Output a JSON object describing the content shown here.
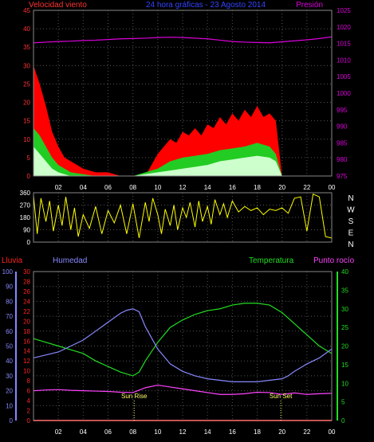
{
  "chart_data": [
    {
      "type": "line",
      "title": "24 hora gráficas - 23 Agosto 2014",
      "legend_left": "Velocidad viento",
      "legend_right": "Presión",
      "x_ticks": [
        "02",
        "04",
        "06",
        "08",
        "10",
        "12",
        "14",
        "16",
        "18",
        "20",
        "22",
        "00"
      ],
      "y_left_ticks": [
        "0",
        "5",
        "10",
        "15",
        "20",
        "25",
        "30",
        "35",
        "40",
        "45"
      ],
      "y_right_ticks": [
        "975",
        "980",
        "985",
        "990",
        "995",
        "1000",
        "1005",
        "1010",
        "1015",
        "1020",
        "1025"
      ],
      "ylim_left": [
        0,
        45
      ],
      "ylim_right": [
        975,
        1025
      ],
      "colors": {
        "gust": "#ff0000",
        "avg_wind": "#22cc22",
        "wind_spread": "#ccffcc",
        "pressure": "#dd00dd",
        "axis_left": "#ff3333",
        "axis_right": "#dd00dd",
        "grid": "#555555"
      },
      "series": [
        {
          "key": "gust",
          "x": [
            0,
            0.5,
            1,
            1.5,
            2,
            2.5,
            3,
            3.5,
            4,
            5,
            6,
            7,
            8,
            9,
            10,
            10.5,
            11,
            11.5,
            12,
            12.5,
            13,
            13.5,
            14,
            14.5,
            15,
            15.5,
            16,
            16.5,
            17,
            17.5,
            18,
            18.5,
            19,
            19.5,
            20,
            21,
            22,
            23,
            24
          ],
          "y": [
            30,
            25,
            19,
            12,
            8,
            5,
            4,
            3,
            2,
            1,
            1,
            0,
            0,
            0,
            6,
            8,
            10,
            9,
            12,
            11,
            13,
            11,
            14,
            13,
            16,
            14,
            17,
            15,
            18,
            16,
            19,
            16,
            17,
            15,
            0,
            0,
            0,
            0,
            0
          ]
        },
        {
          "key": "avg_wind",
          "x": [
            0,
            0.5,
            1,
            1.5,
            2,
            2.5,
            3,
            4,
            5,
            6,
            8,
            10,
            10.5,
            11,
            12,
            13,
            14,
            15,
            16,
            17,
            18,
            19,
            19.5,
            20,
            22,
            24
          ],
          "y": [
            13,
            11,
            8,
            5,
            3,
            2,
            1,
            0.5,
            0,
            0,
            0,
            2,
            3,
            4,
            5,
            5.5,
            6,
            7,
            7.5,
            8,
            9,
            8,
            6,
            0,
            0,
            0
          ]
        },
        {
          "key": "wind_spread",
          "x": [
            0,
            0.5,
            1,
            1.5,
            2,
            2.5,
            3,
            4,
            5,
            6,
            8,
            10,
            11,
            12,
            13,
            14,
            15,
            16,
            17,
            18,
            19,
            19.5,
            20,
            22,
            24
          ],
          "y": [
            8,
            6,
            4,
            2,
            1,
            0.5,
            0,
            0,
            0,
            0,
            0,
            1,
            1.5,
            2,
            2.5,
            3,
            4,
            4.5,
            5,
            5.5,
            5,
            4,
            0,
            0,
            0
          ]
        },
        {
          "key": "pressure",
          "x": [
            0,
            1,
            2,
            3,
            4,
            5,
            6,
            7,
            8,
            9,
            10,
            11,
            12,
            13,
            14,
            15,
            16,
            17,
            18,
            19,
            20,
            21,
            22,
            23,
            24
          ],
          "y": [
            1015.2,
            1015.4,
            1015.6,
            1015.7,
            1015.9,
            1016.0,
            1016.2,
            1016.4,
            1016.5,
            1016.6,
            1016.8,
            1016.9,
            1016.8,
            1016.6,
            1016.4,
            1016.0,
            1015.6,
            1015.4,
            1015.3,
            1015.2,
            1015.5,
            1015.8,
            1016.1,
            1016.5,
            1017.0
          ]
        }
      ]
    },
    {
      "type": "line",
      "title": "",
      "x_ticks": [
        "02",
        "04",
        "06",
        "08",
        "10",
        "12",
        "14",
        "16",
        "18",
        "20",
        "22",
        "00"
      ],
      "y_left_ticks": [
        "0",
        "90",
        "180",
        "270",
        "360"
      ],
      "right_labels": [
        "N",
        "W",
        "S",
        "E",
        "N"
      ],
      "ylim": [
        0,
        360
      ],
      "colors": {
        "direction": "#ffff00",
        "axis": "#ffffff"
      },
      "series": [
        {
          "key": "direction",
          "x": [
            0,
            0.3,
            0.6,
            1,
            1.3,
            1.6,
            2,
            2.3,
            2.6,
            3,
            3.3,
            3.6,
            4,
            4.5,
            5,
            5.5,
            6,
            6.5,
            7,
            7.5,
            8,
            8.5,
            9,
            9.3,
            9.6,
            10,
            10.3,
            10.6,
            11,
            11.3,
            11.6,
            12,
            12.3,
            12.6,
            13,
            13.3,
            13.6,
            14,
            14.3,
            14.6,
            15,
            15.3,
            15.6,
            16,
            16.5,
            17,
            17.5,
            18,
            18.5,
            19,
            19.5,
            20,
            20.5,
            21,
            21.5,
            22,
            22.5,
            23,
            23.5,
            24
          ],
          "y": [
            340,
            60,
            320,
            150,
            300,
            80,
            270,
            120,
            330,
            90,
            250,
            40,
            200,
            100,
            260,
            60,
            230,
            140,
            270,
            60,
            280,
            30,
            290,
            150,
            320,
            200,
            60,
            240,
            120,
            270,
            90,
            250,
            180,
            290,
            110,
            300,
            150,
            260,
            130,
            310,
            200,
            280,
            180,
            300,
            220,
            260,
            230,
            250,
            200,
            240,
            230,
            250,
            210,
            320,
            330,
            80,
            350,
            330,
            40,
            30
          ]
        }
      ]
    },
    {
      "type": "line",
      "title": "",
      "legends": [
        "Lluvia",
        "Humedad",
        "Temperatura",
        "Punto rocío"
      ],
      "annotations": [
        "Sun Rise",
        "Sun Set"
      ],
      "annotation_x": [
        8.1,
        19.9
      ],
      "x_ticks": [
        "02",
        "04",
        "06",
        "08",
        "10",
        "12",
        "14",
        "16",
        "18",
        "20",
        "22",
        "00"
      ],
      "rain_ticks": [
        "0",
        "2",
        "4",
        "6",
        "8",
        "10",
        "12",
        "14",
        "16",
        "18",
        "20",
        "22",
        "24",
        "26",
        "28",
        "30"
      ],
      "humidity_ticks": [
        "0",
        "10",
        "20",
        "30",
        "40",
        "50",
        "60",
        "70",
        "80",
        "90",
        "100"
      ],
      "temp_ticks": [
        "0",
        "5",
        "10",
        "15",
        "20",
        "25",
        "30",
        "35",
        "40"
      ],
      "ylim_humidity": [
        0,
        100
      ],
      "ylim_temp": [
        0,
        40
      ],
      "ylim_rain": [
        0,
        30
      ],
      "colors": {
        "rain": "#ff2222",
        "humidity": "#8888ff",
        "temperature": "#22dd22",
        "dew_point": "#ff44ff",
        "axis_temp": "#22dd22",
        "axis_dew": "#ff44ff",
        "sun": "#ffff66",
        "grid": "#555555"
      },
      "series": [
        {
          "key": "humidity",
          "x": [
            0,
            1,
            2,
            3,
            4,
            5,
            6,
            7,
            7.5,
            8,
            8.5,
            9,
            10,
            11,
            12,
            13,
            14,
            15,
            16,
            17,
            18,
            19,
            20,
            20.5,
            21,
            22,
            23,
            24
          ],
          "y": [
            42,
            44,
            46,
            50,
            54,
            60,
            66,
            72,
            74,
            75,
            73,
            63,
            48,
            38,
            33,
            30,
            28,
            27,
            26,
            26,
            26,
            27,
            28,
            30,
            33,
            38,
            42,
            48
          ]
        },
        {
          "key": "temperature",
          "x": [
            0,
            1,
            2,
            3,
            4,
            5,
            6,
            7,
            7.5,
            8,
            8.5,
            9,
            10,
            11,
            12,
            13,
            14,
            15,
            16,
            17,
            18,
            19,
            20,
            21,
            22,
            23,
            24
          ],
          "y": [
            22,
            21,
            20,
            19,
            18,
            16,
            14.5,
            13,
            12.5,
            12,
            13,
            16,
            21,
            25,
            27,
            28.5,
            29.5,
            30,
            31,
            31.5,
            31.5,
            31,
            29,
            26,
            23,
            20,
            18
          ]
        },
        {
          "key": "dew_point",
          "x": [
            0,
            1,
            2,
            3,
            4,
            5,
            6,
            7,
            8,
            9,
            10,
            11,
            12,
            13,
            14,
            15,
            16,
            17,
            18,
            19,
            20,
            21,
            22,
            23,
            24
          ],
          "y": [
            8,
            8.2,
            8.3,
            8.1,
            8,
            7.9,
            7.8,
            7.6,
            7.5,
            8.8,
            9.5,
            9,
            8.5,
            8,
            7.5,
            7,
            7,
            7.2,
            7.6,
            7.5,
            7,
            7.4,
            7,
            7.2,
            7.3
          ]
        },
        {
          "key": "rain",
          "x": [
            0,
            24
          ],
          "y": [
            0,
            0
          ]
        }
      ]
    }
  ]
}
